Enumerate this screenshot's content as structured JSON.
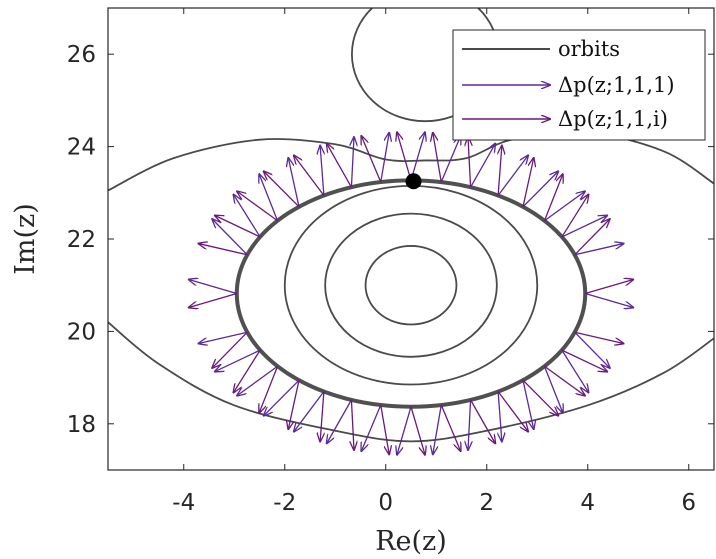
{
  "chart_data": {
    "type": "line",
    "xlabel": "Re(z)",
    "ylabel": "Im(z)",
    "xlim": [
      -5.5,
      6.5
    ],
    "ylim": [
      17,
      27
    ],
    "xticks": [
      -4,
      -2,
      0,
      2,
      4,
      6
    ],
    "yticks": [
      18,
      20,
      22,
      24,
      26
    ],
    "xtick_labels": [
      "-4",
      "-2",
      "0",
      "2",
      "4",
      "6"
    ],
    "ytick_labels": [
      "18",
      "20",
      "22",
      "24",
      "26"
    ],
    "legend_position": "top-right",
    "colors": {
      "orbits": "#4a4a4a",
      "arrows_a": "#5a2a9a",
      "arrows_b": "#6a1a7a"
    },
    "legend": [
      {
        "label": "orbits",
        "kind": "line"
      },
      {
        "label": "Δp(z;1,1,1)",
        "kind": "arrow"
      },
      {
        "label": "Δp(z;1,1,i)",
        "kind": "arrow"
      }
    ],
    "orbits": [
      {
        "type": "ellipse",
        "cx": 0.5,
        "cy": 21.0,
        "rx": 0.9,
        "ry": 0.85
      },
      {
        "type": "ellipse",
        "cx": 0.5,
        "cy": 21.0,
        "rx": 1.7,
        "ry": 1.55
      },
      {
        "type": "ellipse",
        "cx": 0.5,
        "cy": 21.0,
        "rx": 2.5,
        "ry": 2.15
      },
      {
        "type": "ellipse",
        "cx": 0.5,
        "cy": 20.82,
        "rx": 3.45,
        "ry": 2.45,
        "thick": true
      },
      {
        "type": "circle",
        "cx": 0.78,
        "cy": 26.0,
        "r": 1.45
      },
      {
        "type": "separatrix",
        "points": [
          [
            -5.5,
            23.05
          ],
          [
            -4.2,
            23.75
          ],
          [
            -2.5,
            24.15
          ],
          [
            -1.0,
            24.05
          ],
          [
            0.0,
            23.72
          ],
          [
            0.78,
            23.7
          ],
          [
            1.6,
            23.75
          ],
          [
            2.5,
            24.15
          ],
          [
            4.0,
            24.3
          ],
          [
            5.5,
            23.9
          ],
          [
            6.5,
            23.2
          ]
        ]
      },
      {
        "type": "separatrix",
        "points": [
          [
            -5.5,
            20.2
          ],
          [
            -4.5,
            19.3
          ],
          [
            -3.0,
            18.4
          ],
          [
            -1.0,
            17.85
          ],
          [
            0.5,
            17.62
          ],
          [
            2.0,
            17.85
          ],
          [
            4.0,
            18.4
          ],
          [
            5.5,
            19.1
          ],
          [
            6.5,
            19.85
          ]
        ]
      }
    ],
    "marker": {
      "x": 0.55,
      "y": 23.25,
      "color": "#000000"
    },
    "arrow_base_angles_deg": [
      260,
      270,
      280,
      250,
      290,
      240,
      300,
      230,
      310,
      220,
      320,
      210,
      330,
      200,
      340,
      180,
      0,
      160,
      20,
      150,
      30,
      140,
      40,
      130,
      50,
      120,
      60,
      110,
      70,
      100,
      80,
      90
    ]
  }
}
